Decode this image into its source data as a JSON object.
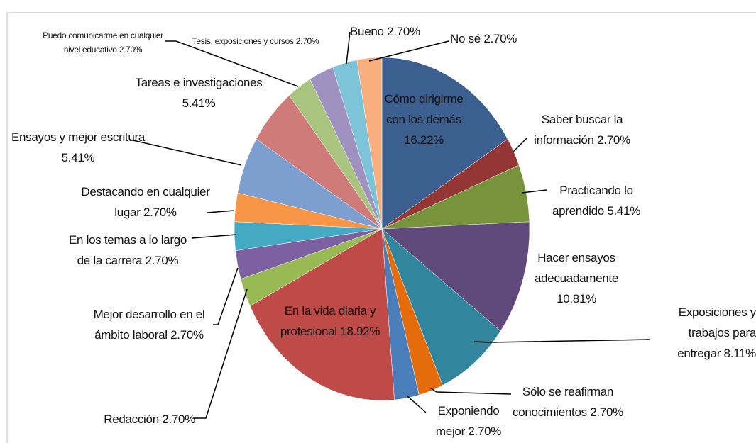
{
  "chart_data": {
    "type": "pie",
    "categories": [
      "Cómo dirigirme con los demás",
      "Saber buscar la información",
      "Practicando lo aprendido",
      "Hacer ensayos adecuadamente",
      "Exposiciones y trabajos para entregar",
      "Sólo se reafirman conocimientos",
      "Exponiendo mejor",
      "En la vida diaria y profesional",
      "Redacción",
      "Mejor desarrollo en el ámbito laboral",
      "En los temas a lo largo de la carrera",
      "Destacando en cualquier lugar",
      "Ensayos y mejor escritura",
      "Tareas e investigaciones",
      "Puedo comunicarme en cualquier nivel educativo",
      "Tesis, exposiciones y cursos",
      "Bueno",
      "No sé"
    ],
    "values": [
      16.22,
      2.7,
      5.41,
      10.81,
      8.11,
      2.7,
      2.7,
      18.92,
      2.7,
      2.7,
      2.7,
      2.7,
      5.41,
      5.41,
      2.7,
      2.7,
      2.7,
      2.7
    ],
    "value_labels": [
      "16.22%",
      "2.70%",
      "5.41%",
      "10.81%",
      "8.11%",
      "2.70%",
      "2.70%",
      "18.92%",
      "2.70%",
      "2.70%",
      "2.70%",
      "2.70%",
      "5.41%",
      "5.41%",
      "2.70%",
      "2.70%",
      "2.70%",
      "2.70%"
    ],
    "colors": [
      "#3b5f8e",
      "#943634",
      "#77933c",
      "#604a7b",
      "#31859c",
      "#e46c0a",
      "#4a7ebb",
      "#be4b48",
      "#98b954",
      "#7d60a0",
      "#46aac5",
      "#f79646",
      "#7c9fd0",
      "#cf7b79",
      "#a9c47f",
      "#a092c0",
      "#7ec4d9",
      "#f9ae7d"
    ]
  }
}
